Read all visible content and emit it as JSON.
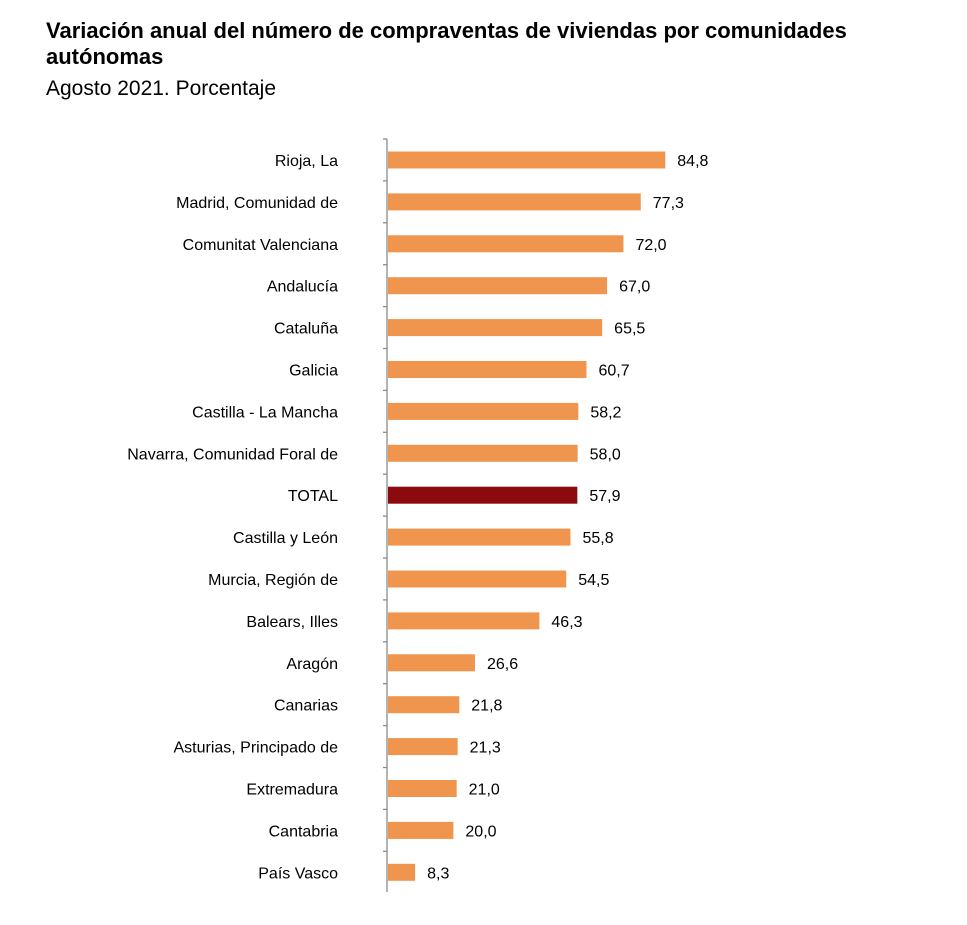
{
  "chart_data": {
    "type": "bar",
    "orientation": "horizontal",
    "title": "Variación anual del número de compraventas de viviendas por comunidades autónomas",
    "subtitle": "Agosto 2021. Porcentaje",
    "categories": [
      "Rioja, La",
      "Madrid, Comunidad de",
      "Comunitat Valenciana",
      "Andalucía",
      "Cataluña",
      "Galicia",
      "Castilla - La Mancha",
      "Navarra, Comunidad Foral de",
      "TOTAL",
      "Castilla y León",
      "Murcia, Región de",
      "Balears, Illes",
      "Aragón",
      "Canarias",
      "Asturias, Principado de",
      "Extremadura",
      "Cantabria",
      "País Vasco"
    ],
    "values": [
      84.8,
      77.3,
      72.0,
      67.0,
      65.5,
      60.7,
      58.2,
      58.0,
      57.9,
      55.8,
      54.5,
      46.3,
      26.6,
      21.8,
      21.3,
      21.0,
      20.0,
      8.3
    ],
    "value_labels": [
      "84,8",
      "77,3",
      "72,0",
      "67,0",
      "65,5",
      "60,7",
      "58,2",
      "58,0",
      "57,9",
      "55,8",
      "54,5",
      "46,3",
      "26,6",
      "21,8",
      "21,3",
      "21,0",
      "20,0",
      "8,3"
    ],
    "highlight_category": "TOTAL",
    "colors": {
      "bar": "#F0954D",
      "highlight": "#8B0A0E",
      "axis": "#8C8C8C"
    },
    "xlim": [
      0,
      100
    ],
    "grid": false,
    "legend": "none"
  }
}
